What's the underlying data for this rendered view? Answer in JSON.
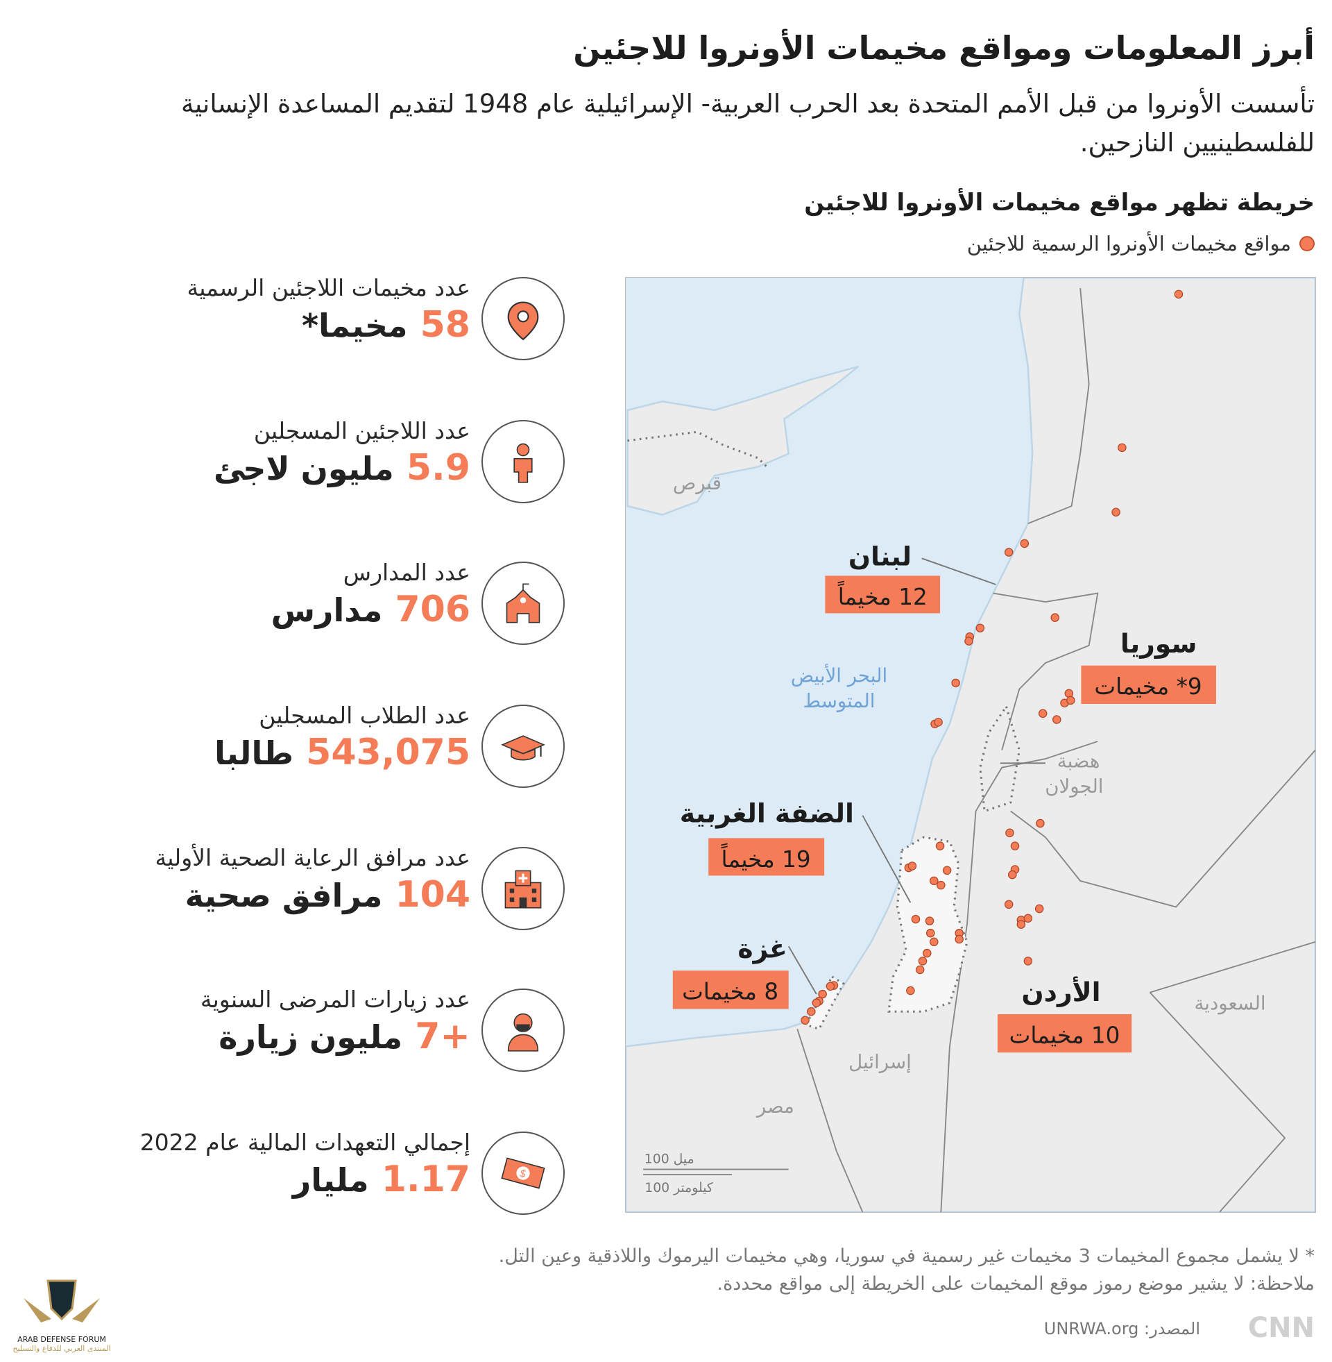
{
  "header": {
    "title": "أبرز المعلومات ومواقع مخيمات الأونروا للاجئين",
    "intro": "تأسست الأونروا من قبل الأمم المتحدة بعد الحرب العربية- الإسرائيلية عام 1948 لتقديم المساعدة الإنسانية للفلسطينيين النازحين."
  },
  "map": {
    "title": "خريطة تظهر مواقع مخيمات الأونروا للاجئين",
    "legend": "مواقع مخيمات الأونروا الرسمية للاجئين",
    "colors": {
      "camp": "#f47c56",
      "sea": "#dcebf5",
      "land": "#ececec",
      "label_box": "#f47c56"
    },
    "regions": [
      {
        "name": "لبنان",
        "count": "12 مخيماً"
      },
      {
        "name": "سوريا",
        "count": "9* مخيمات"
      },
      {
        "name": "الضفة الغربية",
        "count": "19 مخيماً"
      },
      {
        "name": "غزة",
        "count": "8 مخيمات"
      },
      {
        "name": "الأردن",
        "count": "10 مخيمات"
      }
    ],
    "places": {
      "sea": [
        "البحر الأبيض",
        "المتوسط"
      ],
      "golan": [
        "هضبة",
        "الجولان"
      ],
      "cyprus": "قبرص",
      "israel": "إسرائيل",
      "egypt": "مصر",
      "saudi": "السعودية"
    },
    "scale": {
      "miles": "100 ميل",
      "km": "100 كيلومتر"
    }
  },
  "stats": [
    {
      "label": "عدد مخيمات اللاجئين الرسمية",
      "value": "58",
      "unit": "مخيما*",
      "icon": "location-pin-icon"
    },
    {
      "label": "عدد اللاجئين المسجلين",
      "value": "5.9",
      "unit": "مليون لاجئ",
      "icon": "person-icon"
    },
    {
      "label": "عدد المدارس",
      "value": "706",
      "unit": "مدارس",
      "icon": "school-icon"
    },
    {
      "label": "عدد الطلاب المسجلين",
      "value": "543,075",
      "unit": "طالبا",
      "icon": "graduation-cap-icon"
    },
    {
      "label": "عدد مرافق الرعاية الصحية الأولية",
      "value": "104",
      "unit": "مرافق صحية",
      "icon": "hospital-icon"
    },
    {
      "label": "عدد زيارات المرضى السنوية",
      "value": "7+",
      "unit": "مليون زيارة",
      "icon": "patient-mask-icon"
    },
    {
      "label": "إجمالي التعهدات المالية عام 2022",
      "value": "1.17",
      "unit": "مليار",
      "icon": "money-icon"
    }
  ],
  "footer": {
    "note1": "* لا يشمل مجموع المخيمات 3 مخيمات غير رسمية في سوريا، وهي مخيمات اليرموك واللاذقية وعين التل.",
    "note2": "ملاحظة: لا يشير موضع رموز موقع المخيمات على الخريطة إلى مواقع محددة.",
    "source": "المصدر: UNRWA.org",
    "brand_logo": "CNN بالعربية",
    "watermark": {
      "line1": "ARAB DEFENSE FORUM",
      "line2": "المنتدى العربي للدفاع والتسليح"
    }
  }
}
